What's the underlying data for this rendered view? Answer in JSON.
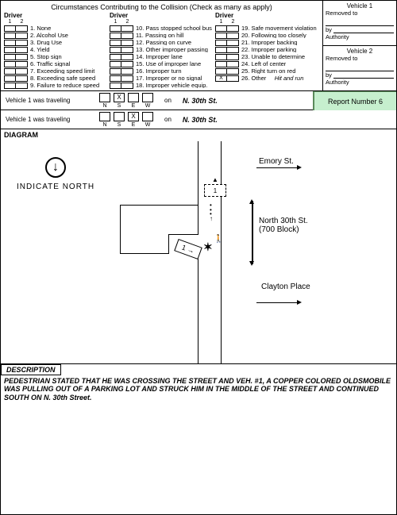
{
  "circumstances": {
    "title": "Circumstances Contributing to the Collision (Check as many as apply)",
    "driver_label": "Driver",
    "col1": [
      "1. None",
      "2. Alcohol Use",
      "3. Drug Use",
      "4. Yield",
      "5. Stop sign",
      "6. Traffic signal",
      "7. Exceeding speed limit",
      "8. Exceeding safe speed",
      "9. Failure to reduce speed"
    ],
    "col2": [
      "10. Pass stopped school bus",
      "11. Passing on hill",
      "12. Passing on curve",
      "13. Other improper passing",
      "14. Improper lane",
      "15. Use of improper lane",
      "16. Improper turn",
      "17. Improper or no signal",
      "18. Improper vehicle equip."
    ],
    "col3": [
      "19. Safe movement violation",
      "20. Following too closely",
      "21. Improper backing",
      "22. Improper parking",
      "23. Unable to determine",
      "24. Left of center",
      "25. Right turn on red",
      "26. Other"
    ],
    "other_note": "Hit and run",
    "checks": {
      "col3_row7_driver1": "X"
    }
  },
  "vehicle_boxes": {
    "v1": {
      "title": "Vehicle 1",
      "removed": "Removed to",
      "by": "by",
      "auth": "Authority"
    },
    "v2": {
      "title": "Vehicle 2",
      "removed": "Removed to",
      "by": "by",
      "auth": "Authority"
    }
  },
  "travel": {
    "label1": "Vehicle 1 was traveling",
    "label2": "Vehicle 1 was traveling",
    "dirs": [
      "N",
      "S",
      "E",
      "W"
    ],
    "check1_index": 1,
    "check2_index": 2,
    "on": "on",
    "street": "N. 30th St."
  },
  "report_box": "Report Number 6",
  "diagram": {
    "header": "DIAGRAM",
    "north_label": "INDICATE NORTH",
    "labels": {
      "emory": "Emory St.",
      "n30th_name": "North 30th St.",
      "n30th_block": "(700 Block)",
      "clayton": "Clayton Place"
    }
  },
  "description": {
    "header": "DESCRIPTION",
    "text": "PEDESTRIAN STATED THAT HE WAS CROSSING THE STREET AND VEH. #1, A COPPER COLORED OLDSMOBILE WAS PULLING OUT OF A PARKING LOT AND STRUCK HIM  IN THE MIDDLE OF THE STREET AND CONTINUED SOUTH ON N. 30th Street."
  }
}
